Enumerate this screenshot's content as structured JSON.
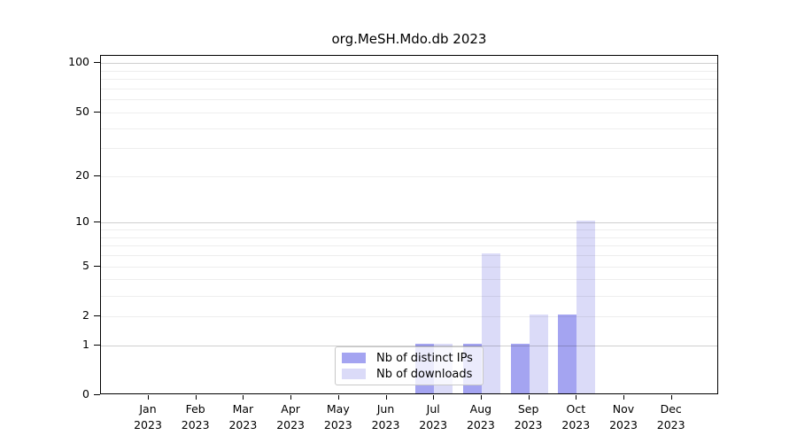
{
  "title": "org.MeSH.Mdo.db 2023",
  "chart_data": {
    "type": "bar",
    "title": "org.MeSH.Mdo.db 2023",
    "categories": [
      "Jan",
      "Feb",
      "Mar",
      "Apr",
      "May",
      "Jun",
      "Jul",
      "Aug",
      "Sep",
      "Oct",
      "Nov",
      "Dec"
    ],
    "category_year": "2023",
    "series": [
      {
        "name": "Nb of distinct IPs",
        "color": "#a4a4f1",
        "values": [
          0,
          0,
          0,
          0,
          0,
          0,
          1,
          1,
          1,
          2,
          0,
          0
        ]
      },
      {
        "name": "Nb of downloads",
        "color": "#dbdbf8",
        "values": [
          0,
          0,
          0,
          0,
          0,
          0,
          1,
          6,
          2,
          10,
          0,
          0
        ]
      }
    ],
    "xlabel": "",
    "ylabel": "",
    "y_axis": {
      "scale": "log1p",
      "tick_values": [
        0,
        1,
        2,
        5,
        10,
        20,
        50,
        100
      ],
      "tick_labels": [
        "0",
        "1",
        "2",
        "5",
        "10",
        "20",
        "50",
        "100"
      ],
      "minor_gridlines": [
        2,
        3,
        4,
        5,
        6,
        7,
        8,
        9,
        20,
        30,
        40,
        50,
        60,
        70,
        80,
        90
      ],
      "major_gridlines": [
        1,
        10,
        100
      ],
      "ylim": [
        0,
        111
      ]
    },
    "legend": {
      "position": "bottom-center-inside",
      "items": [
        {
          "label": "Nb of distinct IPs",
          "color": "#a4a4f1"
        },
        {
          "label": "Nb of downloads",
          "color": "#dbdbf8"
        }
      ]
    },
    "colors": {
      "background": "#ffffff",
      "axis": "#000000",
      "grid_minor": "#ededed",
      "grid_major": "#cfcfcf"
    }
  }
}
